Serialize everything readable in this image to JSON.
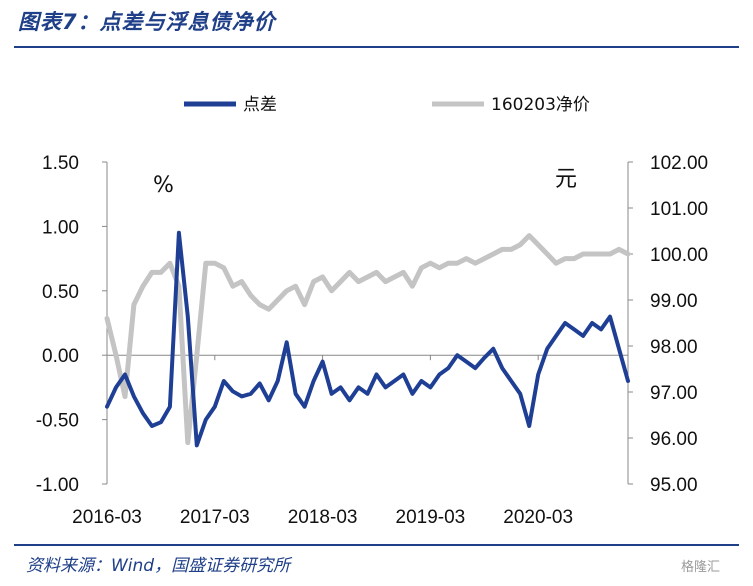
{
  "header": {
    "title": "图表7：点差与浮息债净价"
  },
  "footer": {
    "source": "资料来源：Wind，国盛证券研究所",
    "watermark": "格隆汇"
  },
  "chart_data": {
    "type": "line",
    "title": "图表7：点差与浮息债净价",
    "left_unit": "%",
    "right_unit": "元",
    "legend": [
      "点差",
      "160203净价"
    ],
    "legend_placement": "top",
    "grid": false,
    "x_ticks": [
      "2016-03",
      "2017-03",
      "2018-03",
      "2019-03",
      "2020-03"
    ],
    "x_range": [
      "2016-03",
      "2021-01"
    ],
    "left_axis": {
      "range": [
        -1.0,
        1.5
      ],
      "ticks": [
        "-1.00",
        "-0.50",
        "0.00",
        "0.50",
        "1.00",
        "1.50"
      ]
    },
    "right_axis": {
      "range": [
        95.0,
        102.0
      ],
      "ticks": [
        "95.00",
        "96.00",
        "97.00",
        "98.00",
        "99.00",
        "100.00",
        "101.00",
        "102.00"
      ]
    },
    "colors": {
      "spread": "#1f3f95",
      "price": "#c4c4c4"
    },
    "series": [
      {
        "name": "点差",
        "axis": "left",
        "color": "#1f3f95",
        "x": [
          "2016-03",
          "2016-04",
          "2016-05",
          "2016-06",
          "2016-07",
          "2016-08",
          "2016-09",
          "2016-10",
          "2016-11",
          "2016-12",
          "2017-01",
          "2017-02",
          "2017-03",
          "2017-04",
          "2017-05",
          "2017-06",
          "2017-07",
          "2017-08",
          "2017-09",
          "2017-10",
          "2017-11",
          "2017-12",
          "2018-01",
          "2018-02",
          "2018-03",
          "2018-04",
          "2018-05",
          "2018-06",
          "2018-07",
          "2018-08",
          "2018-09",
          "2018-10",
          "2018-11",
          "2018-12",
          "2019-01",
          "2019-02",
          "2019-03",
          "2019-04",
          "2019-05",
          "2019-06",
          "2019-07",
          "2019-08",
          "2019-09",
          "2019-10",
          "2019-11",
          "2019-12",
          "2020-01",
          "2020-02",
          "2020-03",
          "2020-04",
          "2020-05",
          "2020-06",
          "2020-07",
          "2020-08",
          "2020-09",
          "2020-10",
          "2020-11",
          "2020-12",
          "2021-01"
        ],
        "values": [
          -0.4,
          -0.25,
          -0.15,
          -0.32,
          -0.45,
          -0.55,
          -0.52,
          -0.4,
          0.95,
          0.3,
          -0.7,
          -0.5,
          -0.4,
          -0.2,
          -0.28,
          -0.32,
          -0.3,
          -0.22,
          -0.35,
          -0.2,
          0.1,
          -0.3,
          -0.4,
          -0.2,
          -0.05,
          -0.3,
          -0.25,
          -0.35,
          -0.25,
          -0.3,
          -0.15,
          -0.25,
          -0.2,
          -0.15,
          -0.3,
          -0.2,
          -0.25,
          -0.15,
          -0.1,
          0.0,
          -0.05,
          -0.1,
          -0.02,
          0.05,
          -0.1,
          -0.2,
          -0.3,
          -0.55,
          -0.15,
          0.05,
          0.15,
          0.25,
          0.2,
          0.15,
          0.25,
          0.2,
          0.3,
          0.05,
          -0.2
        ]
      },
      {
        "name": "160203净价",
        "axis": "right",
        "color": "#c4c4c4",
        "x": [
          "2016-03",
          "2016-04",
          "2016-05",
          "2016-06",
          "2016-07",
          "2016-08",
          "2016-09",
          "2016-10",
          "2016-11",
          "2016-12",
          "2017-01",
          "2017-02",
          "2017-03",
          "2017-04",
          "2017-05",
          "2017-06",
          "2017-07",
          "2017-08",
          "2017-09",
          "2017-10",
          "2017-11",
          "2017-12",
          "2018-01",
          "2018-02",
          "2018-03",
          "2018-04",
          "2018-05",
          "2018-06",
          "2018-07",
          "2018-08",
          "2018-09",
          "2018-10",
          "2018-11",
          "2018-12",
          "2019-01",
          "2019-02",
          "2019-03",
          "2019-04",
          "2019-05",
          "2019-06",
          "2019-07",
          "2019-08",
          "2019-09",
          "2019-10",
          "2019-11",
          "2019-12",
          "2020-01",
          "2020-02",
          "2020-03",
          "2020-04",
          "2020-05",
          "2020-06",
          "2020-07",
          "2020-08",
          "2020-09",
          "2020-10",
          "2020-11",
          "2020-12",
          "2021-01"
        ],
        "values": [
          98.6,
          97.8,
          96.9,
          98.9,
          99.3,
          99.6,
          99.6,
          99.8,
          99.3,
          95.9,
          97.8,
          99.8,
          99.8,
          99.7,
          99.3,
          99.4,
          99.1,
          98.9,
          98.8,
          99.0,
          99.2,
          99.3,
          98.9,
          99.4,
          99.5,
          99.2,
          99.4,
          99.6,
          99.4,
          99.5,
          99.6,
          99.4,
          99.5,
          99.6,
          99.3,
          99.7,
          99.8,
          99.7,
          99.8,
          99.8,
          99.9,
          99.8,
          99.9,
          100.0,
          100.1,
          100.1,
          100.2,
          100.4,
          100.2,
          100.0,
          99.8,
          99.9,
          99.9,
          100.0,
          100.0,
          100.0,
          100.0,
          100.1,
          100.0
        ]
      }
    ]
  }
}
